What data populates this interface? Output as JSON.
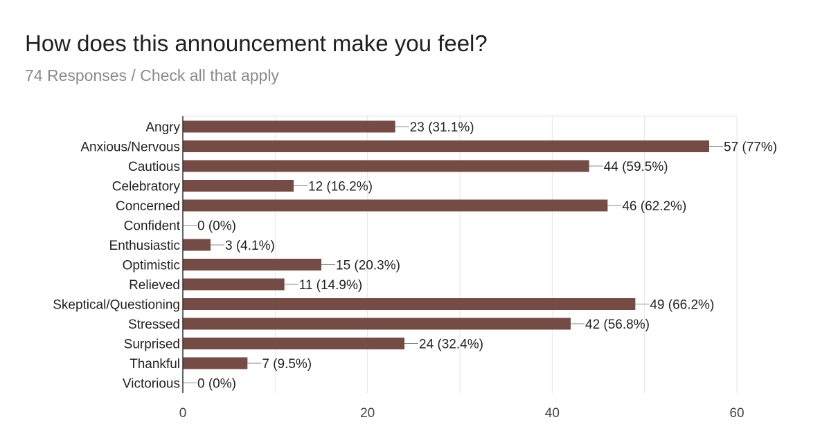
{
  "header": {
    "title": "How does this announcement make you feel?",
    "subtitle": "74 Responses / Check all that apply"
  },
  "colors": {
    "bar": "#754b46",
    "grid": "#e6e6e6",
    "axis": "#333333",
    "leader": "#888888"
  },
  "chart_data": {
    "type": "bar",
    "orientation": "horizontal",
    "title": "How does this announcement make you feel?",
    "subtitle": "74 Responses / Check all that apply",
    "categories": [
      "Angry",
      "Anxious/Nervous",
      "Cautious",
      "Celebratory",
      "Concerned",
      "Confident",
      "Enthusiastic",
      "Optimistic",
      "Relieved",
      "Skeptical/Questioning",
      "Stressed",
      "Surprised",
      "Thankful",
      "Victorious"
    ],
    "values": [
      23,
      57,
      44,
      12,
      46,
      0,
      3,
      15,
      11,
      49,
      42,
      24,
      7,
      0
    ],
    "data_labels": [
      "23 (31.1%)",
      "57 (77%)",
      "44 (59.5%)",
      "12 (16.2%)",
      "46 (62.2%)",
      "0 (0%)",
      "3 (4.1%)",
      "15 (20.3%)",
      "11 (14.9%)",
      "49 (66.2%)",
      "42 (56.8%)",
      "24 (32.4%)",
      "7 (9.5%)",
      "0 (0%)"
    ],
    "xlim": [
      0,
      60
    ],
    "xticks": [
      0,
      20,
      40,
      60
    ],
    "grid": true,
    "legend": "none"
  }
}
